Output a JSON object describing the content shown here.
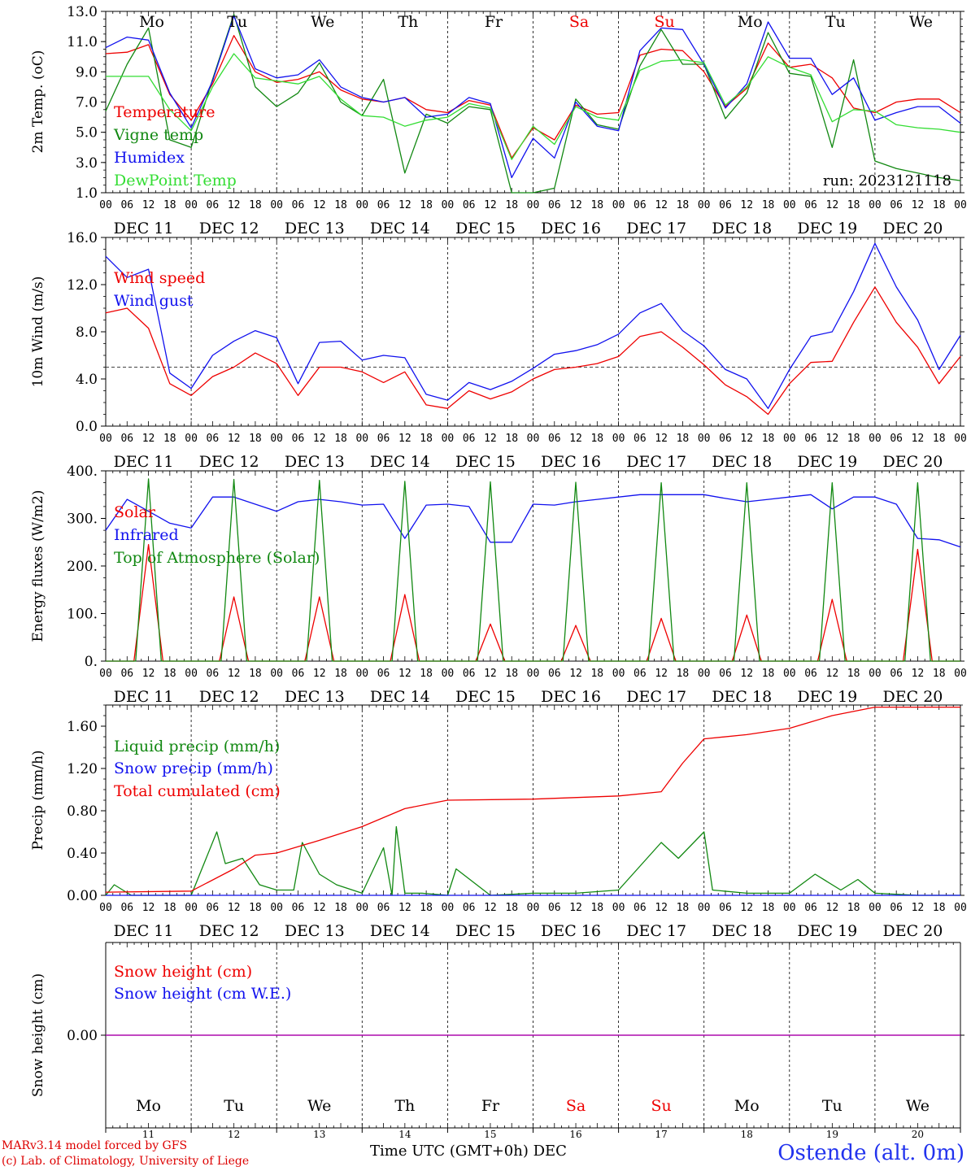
{
  "days": {
    "weekday_labels": [
      "Mo",
      "Tu",
      "We",
      "Th",
      "Fr",
      "Sa",
      "Su",
      "Mo",
      "Tu",
      "We"
    ],
    "weekend_flags": [
      false,
      false,
      false,
      false,
      false,
      true,
      true,
      false,
      false,
      false
    ],
    "date_labels": [
      "DEC 11",
      "DEC 12",
      "DEC 13",
      "DEC 14",
      "DEC 15",
      "DEC 16",
      "DEC 17",
      "DEC 18",
      "DEC 19",
      "DEC 20"
    ],
    "day_numbers": [
      "11",
      "12",
      "13",
      "14",
      "15",
      "16",
      "17",
      "18",
      "19",
      "20"
    ],
    "hour_ticks": [
      "00",
      "06",
      "12",
      "18"
    ],
    "final_hour_tick": "00"
  },
  "colors": {
    "red": "#ee0000",
    "green": "#118811",
    "blue": "#1111ee",
    "lightgreen": "#33dd33",
    "purple": "#aa00aa",
    "title_blue": "#2233ee"
  },
  "footer": {
    "model_line": "MARv3.14 model forced by GFS",
    "credit_line": "(c) Lab. of Climatology, University of Liege",
    "x_axis_label": "Time UTC (GMT+0h) DEC",
    "location": "Ostende (alt. 0m)"
  },
  "chart_data": [
    {
      "type": "line",
      "ylabel": "2m Temp. (oC)",
      "ylim": [
        1.0,
        13.0
      ],
      "yticks": [
        "1.0",
        "3.0",
        "5.0",
        "7.0",
        "9.0",
        "11.0",
        "13.0"
      ],
      "annotation": "run: 2023121118",
      "x_unit": "days since DEC 11 00 UTC",
      "series": [
        {
          "name": "Temperature",
          "color": "red",
          "x": [
            0,
            0.25,
            0.5,
            0.75,
            1,
            1.25,
            1.5,
            1.75,
            2,
            2.25,
            2.5,
            2.75,
            3,
            3.25,
            3.5,
            3.75,
            4,
            4.25,
            4.5,
            4.75,
            5,
            5.25,
            5.5,
            5.75,
            6,
            6.25,
            6.5,
            6.75,
            7,
            7.25,
            7.5,
            7.75,
            8,
            8.25,
            8.5,
            8.75,
            9,
            9.25,
            9.5,
            9.75,
            10
          ],
          "y": [
            10.2,
            10.3,
            10.8,
            7.5,
            5.8,
            8.2,
            11.4,
            9.0,
            8.3,
            8.5,
            9.0,
            7.8,
            7.2,
            7.0,
            7.3,
            6.5,
            6.3,
            7.1,
            6.8,
            3.3,
            5.3,
            4.5,
            6.8,
            6.2,
            6.3,
            10.1,
            10.5,
            10.4,
            9.0,
            6.7,
            7.9,
            10.9,
            9.3,
            9.5,
            8.6,
            6.6,
            6.3,
            7.0,
            7.2,
            7.2,
            6.3
          ]
        },
        {
          "name": "Vigne temp",
          "color": "green",
          "x": [
            0,
            0.25,
            0.5,
            0.75,
            1,
            1.25,
            1.5,
            1.75,
            2,
            2.25,
            2.5,
            2.75,
            3,
            3.25,
            3.5,
            3.75,
            4,
            4.25,
            4.5,
            4.75,
            5,
            5.25,
            5.5,
            5.75,
            6,
            6.25,
            6.5,
            6.75,
            7,
            7.25,
            7.5,
            7.75,
            8,
            8.25,
            8.5,
            8.75,
            9,
            9.25,
            9.5,
            9.75,
            10
          ],
          "y": [
            6.4,
            9.5,
            11.9,
            4.5,
            4.0,
            8.5,
            12.8,
            8.0,
            6.7,
            7.6,
            9.6,
            7.0,
            6.1,
            8.5,
            2.3,
            6.2,
            5.6,
            6.7,
            6.5,
            0.6,
            0.7,
            1.3,
            7.2,
            5.5,
            5.2,
            9.4,
            11.8,
            9.5,
            9.5,
            5.9,
            7.6,
            11.6,
            8.9,
            8.7,
            4.0,
            9.8,
            3.1,
            2.6,
            2.3,
            2.0,
            1.8
          ]
        },
        {
          "name": "Humidex",
          "color": "blue",
          "x": [
            0,
            0.25,
            0.5,
            0.75,
            1,
            1.25,
            1.5,
            1.75,
            2,
            2.25,
            2.5,
            2.75,
            3,
            3.25,
            3.5,
            3.75,
            4,
            4.25,
            4.5,
            4.75,
            5,
            5.25,
            5.5,
            5.75,
            6,
            6.25,
            6.5,
            6.75,
            7,
            7.25,
            7.5,
            7.75,
            8,
            8.25,
            8.5,
            8.75,
            9,
            9.25,
            9.5,
            9.75,
            10
          ],
          "y": [
            10.6,
            11.3,
            11.1,
            7.6,
            5.3,
            8.4,
            12.7,
            9.2,
            8.6,
            8.8,
            9.8,
            8.0,
            7.3,
            7.0,
            7.3,
            6.0,
            6.2,
            7.3,
            6.9,
            2.0,
            4.6,
            3.3,
            7.0,
            5.4,
            5.1,
            10.4,
            11.9,
            11.8,
            9.5,
            6.6,
            8.2,
            12.3,
            9.9,
            9.9,
            7.5,
            8.6,
            5.8,
            6.3,
            6.7,
            6.7,
            5.6
          ]
        },
        {
          "name": "DewPoint Temp",
          "color": "lightgreen",
          "x": [
            0,
            0.25,
            0.5,
            0.75,
            1,
            1.25,
            1.5,
            1.75,
            2,
            2.25,
            2.5,
            2.75,
            3,
            3.25,
            3.5,
            3.75,
            4,
            4.25,
            4.5,
            4.75,
            5,
            5.25,
            5.5,
            5.75,
            6,
            6.25,
            6.5,
            6.75,
            7,
            7.25,
            7.5,
            7.75,
            8,
            8.25,
            8.5,
            8.75,
            9,
            9.25,
            9.5,
            9.75,
            10
          ],
          "y": [
            8.7,
            8.7,
            8.7,
            6.5,
            5.1,
            8.0,
            10.2,
            8.6,
            8.4,
            8.2,
            8.7,
            7.2,
            6.1,
            6.0,
            5.4,
            5.8,
            6.0,
            6.9,
            6.6,
            3.2,
            5.4,
            4.2,
            6.7,
            6.0,
            5.8,
            9.1,
            9.7,
            9.8,
            9.6,
            6.8,
            8.0,
            10.0,
            9.3,
            8.8,
            5.7,
            6.5,
            6.4,
            5.5,
            5.3,
            5.2,
            5.0
          ]
        }
      ]
    },
    {
      "type": "line",
      "ylabel": "10m Wind (m/s)",
      "ylim": [
        0.0,
        16.0
      ],
      "yticks": [
        "0.0",
        "4.0",
        "8.0",
        "12.0",
        "16.0"
      ],
      "reference_line": 5.0,
      "x_unit": "days since DEC 11 00 UTC",
      "series": [
        {
          "name": "Wind speed",
          "color": "red",
          "x": [
            0,
            0.25,
            0.5,
            0.75,
            1,
            1.25,
            1.5,
            1.75,
            2,
            2.25,
            2.5,
            2.75,
            3,
            3.25,
            3.5,
            3.75,
            4,
            4.25,
            4.5,
            4.75,
            5,
            5.25,
            5.5,
            5.75,
            6,
            6.25,
            6.5,
            6.75,
            7,
            7.25,
            7.5,
            7.75,
            8,
            8.25,
            8.5,
            8.75,
            9,
            9.25,
            9.5,
            9.75,
            10
          ],
          "y": [
            9.6,
            10.0,
            8.3,
            3.6,
            2.6,
            4.2,
            5.0,
            6.2,
            5.3,
            2.6,
            5.0,
            5.0,
            4.6,
            3.7,
            4.6,
            1.8,
            1.5,
            3.0,
            2.3,
            2.9,
            4.0,
            4.8,
            5.0,
            5.3,
            5.9,
            7.6,
            8.0,
            6.7,
            5.2,
            3.5,
            2.5,
            1.0,
            3.6,
            5.4,
            5.5,
            8.8,
            11.8,
            8.8,
            6.7,
            3.6,
            5.9
          ]
        },
        {
          "name": "Wind gust",
          "color": "blue",
          "x": [
            0,
            0.25,
            0.5,
            0.75,
            1,
            1.25,
            1.5,
            1.75,
            2,
            2.25,
            2.5,
            2.75,
            3,
            3.25,
            3.5,
            3.75,
            4,
            4.25,
            4.5,
            4.75,
            5,
            5.25,
            5.5,
            5.75,
            6,
            6.25,
            6.5,
            6.75,
            7,
            7.25,
            7.5,
            7.75,
            8,
            8.25,
            8.5,
            8.75,
            9,
            9.25,
            9.5,
            9.75,
            10
          ],
          "y": [
            14.4,
            12.6,
            13.3,
            4.5,
            3.2,
            6.0,
            7.2,
            8.1,
            7.5,
            3.6,
            7.1,
            7.2,
            5.6,
            6.0,
            5.8,
            2.7,
            2.2,
            3.7,
            3.1,
            3.8,
            4.9,
            6.1,
            6.4,
            6.9,
            7.8,
            9.6,
            10.4,
            8.1,
            6.8,
            4.8,
            4.0,
            1.5,
            4.8,
            7.6,
            8.0,
            11.4,
            15.5,
            11.8,
            9.0,
            4.8,
            7.7
          ]
        }
      ]
    },
    {
      "type": "line",
      "ylabel": "Energy fluxes (W/m2)",
      "ylim": [
        0,
        400
      ],
      "yticks": [
        "0.",
        "100.",
        "200.",
        "300.",
        "400."
      ],
      "x_unit": "days since DEC 11 00 UTC",
      "series": [
        {
          "name": "Solar",
          "color": "red",
          "x": [
            0,
            0.33,
            0.5,
            0.67,
            1,
            1.33,
            1.5,
            1.67,
            2,
            2.33,
            2.5,
            2.67,
            3,
            3.33,
            3.5,
            3.67,
            4,
            4.33,
            4.5,
            4.67,
            5,
            5.33,
            5.5,
            5.67,
            6,
            6.33,
            6.5,
            6.67,
            7,
            7.33,
            7.5,
            7.67,
            8,
            8.33,
            8.5,
            8.67,
            9,
            9.33,
            9.5,
            9.67,
            10
          ],
          "y": [
            0,
            0,
            245,
            0,
            0,
            0,
            135,
            0,
            0,
            0,
            135,
            0,
            0,
            0,
            140,
            0,
            0,
            0,
            78,
            0,
            0,
            0,
            75,
            0,
            0,
            0,
            90,
            0,
            0,
            0,
            97,
            0,
            0,
            0,
            130,
            0,
            0,
            0,
            235,
            0,
            0
          ]
        },
        {
          "name": "Infrared",
          "color": "blue",
          "x": [
            0,
            0.25,
            0.5,
            0.75,
            1,
            1.25,
            1.5,
            1.75,
            2,
            2.25,
            2.5,
            2.75,
            3,
            3.25,
            3.5,
            3.75,
            4,
            4.25,
            4.5,
            4.75,
            5,
            5.25,
            5.5,
            5.75,
            6,
            6.25,
            6.5,
            6.75,
            7,
            7.25,
            7.5,
            7.75,
            8,
            8.25,
            8.5,
            8.75,
            9,
            9.25,
            9.5,
            9.75,
            10
          ],
          "y": [
            275,
            340,
            315,
            290,
            280,
            345,
            345,
            330,
            315,
            335,
            340,
            335,
            328,
            330,
            258,
            328,
            330,
            325,
            250,
            250,
            330,
            328,
            335,
            340,
            345,
            350,
            350,
            350,
            350,
            342,
            335,
            340,
            345,
            350,
            320,
            345,
            345,
            330,
            258,
            255,
            240
          ]
        },
        {
          "name": "Top of Atmosphere (Solar)",
          "color": "green",
          "x": [
            0,
            0.35,
            0.5,
            0.65,
            1,
            1.35,
            1.5,
            1.65,
            2,
            2.35,
            2.5,
            2.65,
            3,
            3.35,
            3.5,
            3.65,
            4,
            4.35,
            4.5,
            4.65,
            5,
            5.35,
            5.5,
            5.65,
            6,
            6.35,
            6.5,
            6.65,
            7,
            7.35,
            7.5,
            7.65,
            8,
            8.35,
            8.5,
            8.65,
            9,
            9.35,
            9.5,
            9.65,
            10
          ],
          "y": [
            0,
            0,
            383,
            0,
            0,
            0,
            382,
            0,
            0,
            0,
            380,
            0,
            0,
            0,
            378,
            0,
            0,
            0,
            377,
            0,
            0,
            0,
            376,
            0,
            0,
            0,
            375,
            0,
            0,
            0,
            375,
            0,
            0,
            0,
            375,
            0,
            0,
            0,
            375,
            0,
            0
          ]
        }
      ]
    },
    {
      "type": "line",
      "ylabel": "Precip (mm/h)",
      "ylim": [
        0.0,
        1.8
      ],
      "yticks": [
        "0.00",
        "0.40",
        "0.80",
        "1.20",
        "1.60"
      ],
      "x_unit": "days since DEC 11 00 UTC",
      "series": [
        {
          "name": "Liquid precip (mm/h)",
          "color": "green",
          "x": [
            0,
            0.1,
            0.3,
            1.0,
            1.3,
            1.4,
            1.6,
            1.8,
            2.0,
            2.2,
            2.3,
            2.5,
            2.7,
            3.0,
            3.25,
            3.35,
            3.4,
            3.5,
            3.7,
            4.0,
            4.1,
            4.5,
            5.0,
            5.5,
            6.0,
            6.5,
            6.7,
            7.0,
            7.1,
            7.5,
            8.0,
            8.3,
            8.6,
            8.8,
            9.0,
            9.5,
            10
          ],
          "y": [
            0,
            0.1,
            0,
            0,
            0.6,
            0.3,
            0.35,
            0.1,
            0.05,
            0.05,
            0.5,
            0.2,
            0.1,
            0.02,
            0.45,
            0,
            0.65,
            0.02,
            0.02,
            0,
            0.25,
            0,
            0.02,
            0.02,
            0.05,
            0.5,
            0.35,
            0.6,
            0.05,
            0.02,
            0.02,
            0.2,
            0.05,
            0.15,
            0.02,
            0,
            0
          ]
        },
        {
          "name": "Snow precip (mm/h)",
          "color": "blue",
          "x": [
            0,
            10
          ],
          "y": [
            0,
            0
          ]
        },
        {
          "name": "Total cumulated (cm)",
          "color": "red",
          "x": [
            0,
            1.0,
            1.5,
            1.75,
            2.0,
            2.5,
            3.0,
            3.5,
            4.0,
            5.0,
            6.0,
            6.5,
            6.75,
            7.0,
            7.5,
            8.0,
            8.5,
            9.0,
            10
          ],
          "y": [
            0.03,
            0.04,
            0.25,
            0.38,
            0.4,
            0.52,
            0.65,
            0.82,
            0.9,
            0.91,
            0.94,
            0.98,
            1.25,
            1.48,
            1.52,
            1.58,
            1.7,
            1.78,
            1.78
          ]
        }
      ]
    },
    {
      "type": "line",
      "ylabel": "Snow height (cm)",
      "ylim": [
        -1.0,
        1.0
      ],
      "yticks": [
        "0.00"
      ],
      "x_unit": "days since DEC 11 00 UTC",
      "series": [
        {
          "name": "Snow height (cm)",
          "color": "red",
          "x": [
            0,
            10
          ],
          "y": [
            0,
            0
          ]
        },
        {
          "name": "Snow height (cm W.E.)",
          "color": "blue",
          "x": [
            0,
            10
          ],
          "y": [
            0,
            0
          ]
        }
      ]
    }
  ]
}
